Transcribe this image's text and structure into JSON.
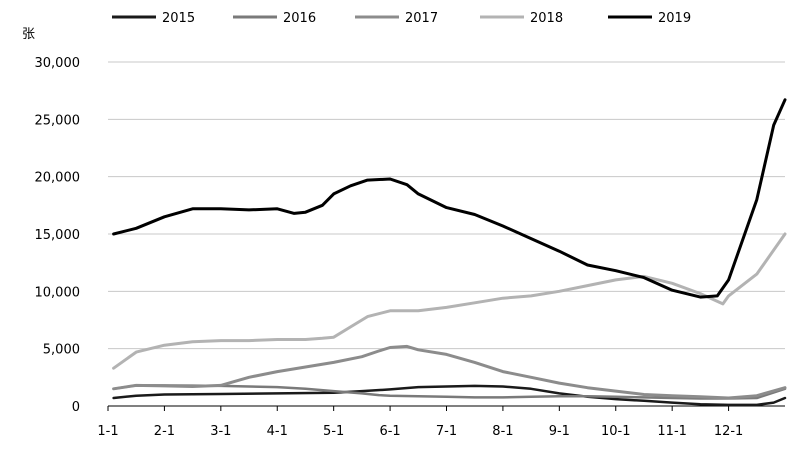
{
  "chart_data": {
    "type": "line",
    "ylabel": "张",
    "ylim": [
      0,
      30000
    ],
    "yticks": [
      0,
      5000,
      10000,
      15000,
      20000,
      25000,
      30000
    ],
    "ytick_labels": [
      "0",
      "5,000",
      "10,000",
      "15,000",
      "20,000",
      "25,000",
      "30,000"
    ],
    "xlim": [
      0,
      12
    ],
    "xticks": [
      0,
      1,
      2,
      3,
      4,
      5,
      6,
      7,
      8,
      9,
      10,
      11
    ],
    "xtick_labels": [
      "1-1",
      "2-1",
      "3-1",
      "4-1",
      "5-1",
      "6-1",
      "7-1",
      "8-1",
      "9-1",
      "10-1",
      "11-1",
      "12-1"
    ],
    "grid": "horizontal",
    "legend_position": "top",
    "series": [
      {
        "name": "2015",
        "color": "#1a1a1a",
        "width": 2.5,
        "x": [
          0.1,
          0.5,
          1,
          2,
          3,
          4,
          4.5,
          5,
          5.5,
          6,
          6.5,
          7,
          7.5,
          8,
          8.5,
          9,
          9.5,
          10,
          10.5,
          11,
          11.5,
          11.8,
          12
        ],
        "y": [
          700,
          900,
          1000,
          1050,
          1100,
          1150,
          1300,
          1450,
          1650,
          1700,
          1750,
          1700,
          1500,
          1100,
          800,
          600,
          450,
          300,
          150,
          100,
          100,
          300,
          700
        ]
      },
      {
        "name": "2016",
        "color": "#7a7a7a",
        "width": 2.5,
        "x": [
          0.1,
          0.5,
          1,
          2,
          2.5,
          3,
          3.5,
          4,
          4.5,
          4.8,
          5,
          5.5,
          6,
          6.5,
          7,
          7.5,
          8,
          8.5,
          9,
          9.5,
          10,
          10.5,
          11,
          11.5,
          12
        ],
        "y": [
          1500,
          1800,
          1800,
          1750,
          1700,
          1650,
          1500,
          1300,
          1100,
          950,
          900,
          850,
          800,
          750,
          750,
          800,
          850,
          850,
          800,
          750,
          700,
          650,
          650,
          700,
          1500
        ]
      },
      {
        "name": "2017",
        "color": "#8c8c8c",
        "width": 3,
        "x": [
          0.1,
          0.5,
          1,
          1.5,
          2,
          2.5,
          3,
          3.5,
          4,
          4.5,
          4.8,
          5,
          5.3,
          5.5,
          6,
          6.5,
          7,
          7.5,
          8,
          8.5,
          9,
          9.5,
          10,
          10.5,
          11,
          11.5,
          12
        ],
        "y": [
          1500,
          1800,
          1750,
          1700,
          1800,
          2500,
          3000,
          3400,
          3800,
          4300,
          4800,
          5100,
          5200,
          4900,
          4500,
          3800,
          3000,
          2500,
          2000,
          1600,
          1300,
          1000,
          900,
          800,
          700,
          900,
          1600
        ]
      },
      {
        "name": "2018",
        "color": "#b3b3b3",
        "width": 3,
        "x": [
          0.1,
          0.5,
          1,
          1.5,
          2,
          2.5,
          3,
          3.5,
          3.8,
          4,
          4.3,
          4.6,
          5,
          5.5,
          6,
          6.5,
          7,
          7.5,
          8,
          8.5,
          9,
          9.5,
          10,
          10.5,
          10.9,
          11,
          11.5,
          12
        ],
        "y": [
          3300,
          4700,
          5300,
          5600,
          5700,
          5700,
          5800,
          5800,
          5900,
          6000,
          6900,
          7800,
          8300,
          8300,
          8600,
          9000,
          9400,
          9600,
          10000,
          10500,
          11000,
          11300,
          10700,
          9800,
          8900,
          9600,
          11500,
          15000
        ]
      },
      {
        "name": "2019",
        "color": "#000000",
        "width": 3,
        "x": [
          0.1,
          0.5,
          1,
          1.5,
          2,
          2.5,
          3,
          3.3,
          3.5,
          3.8,
          4,
          4.3,
          4.6,
          5,
          5.3,
          5.5,
          6,
          6.5,
          7,
          7.5,
          8,
          8.5,
          9,
          9.5,
          10,
          10.5,
          10.8,
          11,
          11.5,
          11.8,
          12
        ],
        "y": [
          15000,
          15500,
          16500,
          17200,
          17200,
          17100,
          17200,
          16800,
          16900,
          17500,
          18500,
          19200,
          19700,
          19800,
          19300,
          18500,
          17300,
          16700,
          15700,
          14600,
          13500,
          12300,
          11800,
          11200,
          10100,
          9500,
          9600,
          11000,
          18000,
          24500,
          26700
        ]
      }
    ]
  }
}
